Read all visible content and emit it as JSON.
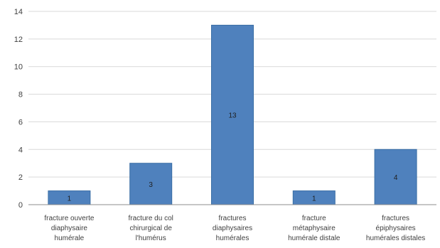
{
  "chart_data": {
    "type": "bar",
    "categories": [
      [
        "fracture ouverte",
        "diaphysaire",
        "humérale"
      ],
      [
        "fracture du col",
        "chirurgical de",
        "l'humérus"
      ],
      [
        "fractures",
        "diaphysaires",
        "humérales"
      ],
      [
        "fracture",
        "métaphysaire",
        "humérale distale"
      ],
      [
        "fractures",
        "épiphysaires",
        "humérales distales"
      ]
    ],
    "values": [
      1,
      3,
      13,
      1,
      4
    ],
    "data_labels": [
      "1",
      "3",
      "13",
      "1",
      "4"
    ],
    "yticks": [
      0,
      2,
      4,
      6,
      8,
      10,
      12,
      14
    ],
    "ylim": [
      0,
      14
    ],
    "grid": true,
    "bar_color": "#4f81bd",
    "title": "",
    "xlabel": "",
    "ylabel": ""
  }
}
